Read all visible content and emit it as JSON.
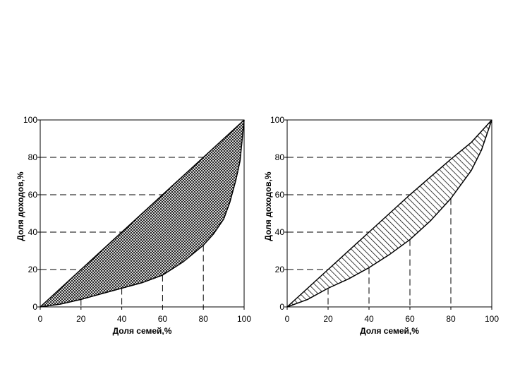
{
  "chart_data": [
    {
      "type": "area",
      "fill_pattern": "crosshatch",
      "xlabel": "Доля семей,%",
      "ylabel": "Доля доходов,%",
      "xlim": [
        0,
        100
      ],
      "ylim": [
        0,
        100
      ],
      "x_ticks": [
        "0",
        "20",
        "40",
        "60",
        "80",
        "100"
      ],
      "y_ticks": [
        "0",
        "20",
        "40",
        "60",
        "80",
        "100"
      ],
      "series": [
        {
          "x": [
            0,
            100
          ],
          "y": [
            0,
            100
          ]
        },
        {
          "x": [
            0,
            10,
            20,
            30,
            40,
            50,
            60,
            70,
            80,
            85,
            90,
            93,
            96,
            98,
            100
          ],
          "y": [
            0,
            1.5,
            4,
            7,
            10,
            13,
            17,
            24,
            33,
            39,
            47,
            56,
            68,
            78,
            100
          ]
        }
      ],
      "reference_lines": [
        {
          "x": 20,
          "y": 20
        },
        {
          "x": 40,
          "y": 40
        },
        {
          "x": 60,
          "y": 60
        },
        {
          "x": 80,
          "y": 80
        }
      ]
    },
    {
      "type": "area",
      "fill_pattern": "diagonal",
      "xlabel": "Доля семей,%",
      "ylabel": "Доля доходов,%",
      "xlim": [
        0,
        100
      ],
      "ylim": [
        0,
        100
      ],
      "x_ticks": [
        "0",
        "20",
        "40",
        "60",
        "80",
        "100"
      ],
      "y_ticks": [
        "0",
        "20",
        "40",
        "60",
        "80",
        "100"
      ],
      "series": [
        {
          "x": [
            0,
            20,
            40,
            60,
            80,
            90,
            95,
            100
          ],
          "y": [
            0,
            20,
            40,
            60,
            79,
            88,
            94,
            100
          ]
        },
        {
          "x": [
            0,
            10,
            20,
            30,
            40,
            50,
            60,
            70,
            80,
            90,
            95,
            100
          ],
          "y": [
            0,
            4,
            10,
            15,
            21,
            28,
            36,
            46,
            58,
            73,
            84,
            100
          ]
        }
      ],
      "reference_lines": [
        {
          "x": 20,
          "y": 20
        },
        {
          "x": 40,
          "y": 40
        },
        {
          "x": 60,
          "y": 60
        },
        {
          "x": 80,
          "y": 80
        }
      ]
    }
  ]
}
